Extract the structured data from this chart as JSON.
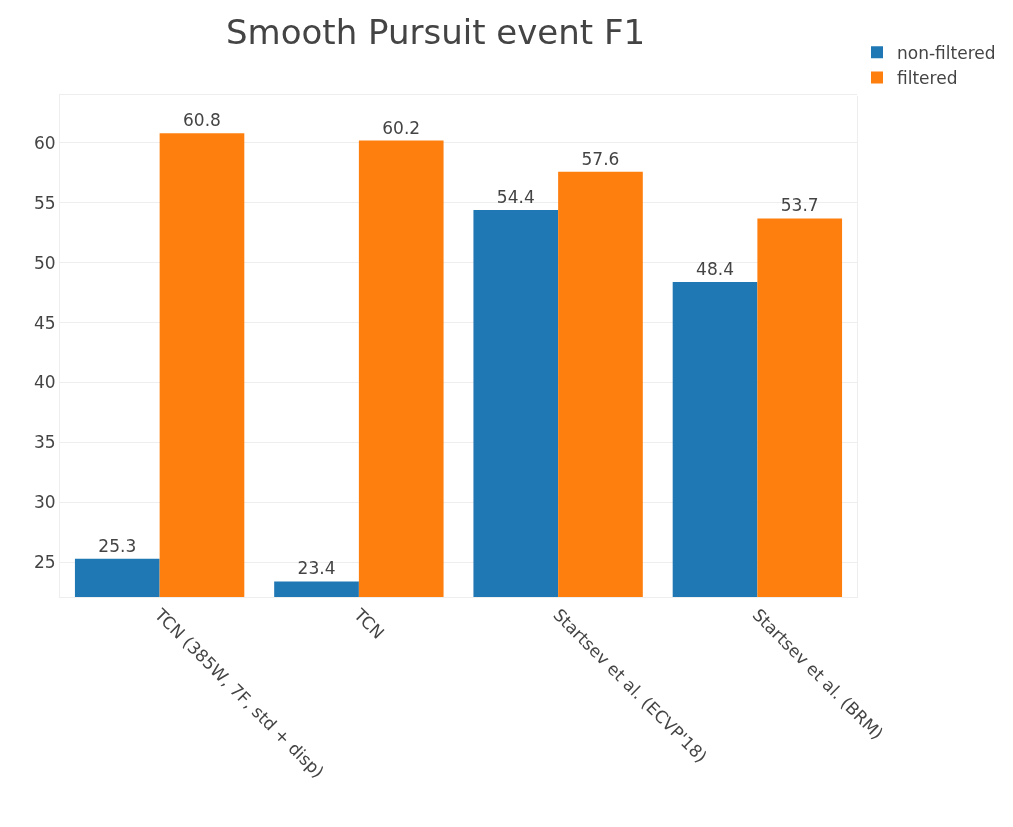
{
  "chart_data": {
    "type": "bar",
    "title": "Smooth Pursuit event F1",
    "categories": [
      "TCN (385W, 7F, std + disp)",
      "TCN",
      "Startsev et al. (ECVP'18)",
      "Startsev et al. (BRM)"
    ],
    "series": [
      {
        "name": "non-filtered",
        "color": "#1f77b4",
        "values": [
          25.3,
          23.4,
          54.4,
          48.4
        ]
      },
      {
        "name": "filtered",
        "color": "#ff7f0e",
        "values": [
          60.8,
          60.2,
          57.6,
          53.7
        ]
      }
    ],
    "ylim": [
      22.1,
      64
    ],
    "yticks": [
      25,
      30,
      35,
      40,
      45,
      50,
      55,
      60
    ],
    "grid": "y",
    "legend": "top right",
    "data_labels": true
  }
}
